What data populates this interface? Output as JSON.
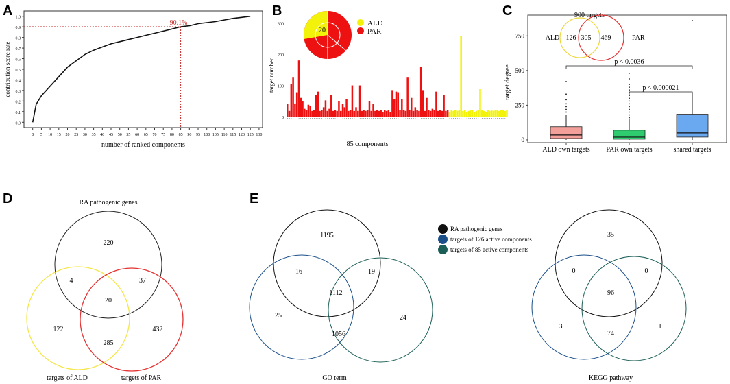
{
  "panel_labels": {
    "A": "A",
    "B": "B",
    "C": "C",
    "D": "D",
    "E": "E"
  },
  "chart_data": [
    {
      "panel": "A",
      "type": "line",
      "title": "",
      "xlabel": "number of ranked components",
      "ylabel": "contribution score rate",
      "xlim": [
        -5,
        132
      ],
      "ylim": [
        -0.05,
        1.05
      ],
      "x_ticks": [
        "0",
        "5",
        "10",
        "15",
        "20",
        "25",
        "30",
        "35",
        "40",
        "45",
        "50",
        "55",
        "60",
        "65",
        "70",
        "75",
        "80",
        "85",
        "90",
        "95",
        "100",
        "105",
        "110",
        "115",
        "120",
        "125",
        "130"
      ],
      "y_ticks": [
        "0.0",
        "0.1",
        "0.2",
        "0.3",
        "0.4",
        "0.5",
        "0.6",
        "0.7",
        "0.8",
        "0.9",
        "1.0"
      ],
      "x": [
        0,
        2,
        5,
        10,
        15,
        20,
        25,
        30,
        35,
        40,
        45,
        50,
        55,
        60,
        65,
        70,
        75,
        80,
        85,
        90,
        95,
        100,
        105,
        110,
        115,
        120,
        125
      ],
      "y": [
        0.0,
        0.17,
        0.25,
        0.34,
        0.43,
        0.52,
        0.58,
        0.64,
        0.68,
        0.71,
        0.74,
        0.76,
        0.78,
        0.8,
        0.82,
        0.84,
        0.86,
        0.88,
        0.901,
        0.91,
        0.93,
        0.94,
        0.95,
        0.965,
        0.98,
        0.99,
        1.0
      ],
      "annotation": {
        "label": "90.1%",
        "x": 85,
        "y": 0.901
      }
    },
    {
      "panel": "B",
      "type": "bar",
      "xlabel": "85 components",
      "ylabel": "target number",
      "ylim": [
        0,
        330
      ],
      "y_ticks": [
        "0",
        "100",
        "200",
        "300"
      ],
      "series_colors": {
        "ALD": "#f2f20a",
        "PAR": "#ee1111"
      },
      "values": [
        40,
        18,
        105,
        125,
        42,
        78,
        180,
        60,
        50,
        25,
        20,
        38,
        35,
        18,
        20,
        70,
        80,
        18,
        22,
        30,
        52,
        18,
        25,
        70,
        18,
        20,
        18,
        50,
        18,
        40,
        30,
        55,
        18,
        22,
        100,
        18,
        30,
        18,
        100,
        18,
        20,
        18,
        20,
        50,
        18,
        40,
        18,
        20,
        18,
        22,
        15,
        20,
        18,
        22,
        15,
        85,
        55,
        80,
        78,
        22,
        55,
        20,
        18,
        125,
        20,
        60,
        18,
        30,
        20,
        18,
        160,
        85,
        18,
        60,
        20,
        18,
        25,
        20,
        80,
        18,
        20,
        18,
        70,
        18,
        20
      ],
      "ald_values": [
        15,
        22,
        18,
        20,
        18,
        20,
        258,
        18,
        20,
        15,
        18,
        22,
        20,
        15,
        18,
        20,
        88,
        20,
        18,
        15,
        20,
        18,
        20,
        18,
        22,
        20,
        18,
        20,
        22,
        18,
        20
      ],
      "legend": [
        {
          "label": "ALD",
          "color": "#f2f20a"
        },
        {
          "label": "PAR",
          "color": "#ee1111"
        }
      ],
      "pie_label": "20"
    },
    {
      "panel": "C",
      "type": "box",
      "ylabel": "target degree",
      "y_ticks": [
        "0",
        "250",
        "500",
        "750"
      ],
      "ylim": [
        -20,
        900
      ],
      "categories": [
        "ALD own targets",
        "PAR own targets",
        "shared targets"
      ],
      "colors": [
        "#f4a09a",
        "#2ecc6e",
        "#6aa8f0"
      ],
      "boxes": [
        {
          "q1": 10,
          "median": 35,
          "q3": 95,
          "whisker_low": 0,
          "whisker_high": 180,
          "outliers": [
            200,
            220,
            240,
            260,
            290,
            330,
            420
          ]
        },
        {
          "q1": 5,
          "median": 20,
          "q3": 70,
          "whisker_low": 0,
          "whisker_high": 150,
          "outliers": [
            160,
            180,
            200,
            220,
            240,
            260,
            280,
            300,
            320,
            340,
            360,
            380,
            400,
            440,
            480,
            550
          ]
        },
        {
          "q1": 20,
          "median": 50,
          "q3": 185,
          "whisker_low": 0,
          "whisker_high": 345,
          "outliers": [
            860
          ]
        }
      ],
      "comparisons": [
        {
          "label": "p < 0.0036",
          "from": 0,
          "to": 2
        },
        {
          "label": "p < 0.000021",
          "from": 1,
          "to": 2
        }
      ],
      "venn": {
        "title": "900 targets",
        "left_label": "ALD",
        "right_label": "PAR",
        "left_only": "126",
        "shared": "305",
        "right_only": "469"
      }
    }
  ],
  "venn_D": {
    "top_label": "RA pathogenic genes",
    "left_label": "targets of ALD",
    "right_label": "targets of PAR",
    "top_only": "220",
    "left_top": "4",
    "right_top": "37",
    "center": "20",
    "left_only": "122",
    "left_right": "285",
    "right_only": "432",
    "colors": {
      "top": "#222222",
      "left": "#f5e64a",
      "right": "#e43131"
    }
  },
  "venn_E_legend": [
    {
      "label": "RA pathogenic genes",
      "color": "#111111"
    },
    {
      "label": "targets of 126 active components",
      "color": "#1b4f8a"
    },
    {
      "label": "targets of 85 active components",
      "color": "#1a5e57"
    }
  ],
  "venn_E_go": {
    "caption": "GO term",
    "top_only": "1195",
    "left_top": "16",
    "right_top": "19",
    "center": "1112",
    "left_only": "25",
    "left_right": "1056",
    "right_only": "24"
  },
  "venn_E_kegg": {
    "caption": "KEGG pathway",
    "top_only": "35",
    "left_top": "0",
    "right_top": "0",
    "center": "96",
    "left_only": "3",
    "left_right": "74",
    "right_only": "1"
  }
}
